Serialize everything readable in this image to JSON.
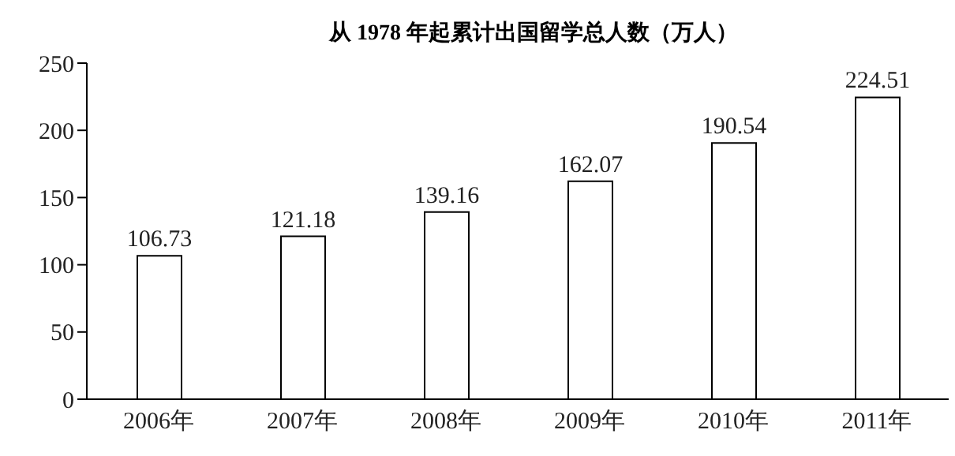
{
  "chart_data": {
    "type": "bar",
    "title": "从 1978 年起累计出国留学总人数（万人）",
    "categories": [
      "2006年",
      "2007年",
      "2008年",
      "2009年",
      "2010年",
      "2011年"
    ],
    "values": [
      106.73,
      121.18,
      139.16,
      162.07,
      190.54,
      224.51
    ],
    "color": "#ffffff",
    "ylim": [
      0,
      250
    ],
    "yticks": [
      0,
      50,
      100,
      150,
      200,
      250
    ],
    "grid": false,
    "data_labels": true
  }
}
